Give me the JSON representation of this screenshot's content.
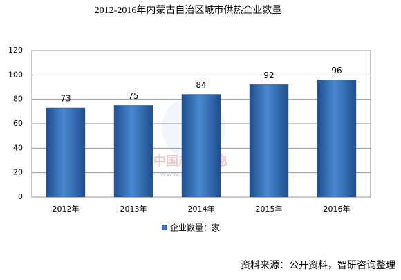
{
  "chart_data": {
    "type": "bar",
    "title": "2012-2016年内蒙古自治区城市供热企业数量",
    "categories": [
      "2012年",
      "2013年",
      "2014年",
      "2015年",
      "2016年"
    ],
    "series": [
      {
        "name": "企业数量：家",
        "color": "#2e6db4",
        "values": [
          73,
          75,
          84,
          92,
          96
        ]
      }
    ],
    "ylim": [
      0,
      120
    ],
    "yticks": [
      0,
      20,
      40,
      60,
      80,
      100,
      120
    ],
    "grid": true,
    "watermark": "中国产业信息",
    "watermark_url": "www.chyxx.com",
    "source": "资料来源：公开资料，智研咨询整理"
  }
}
